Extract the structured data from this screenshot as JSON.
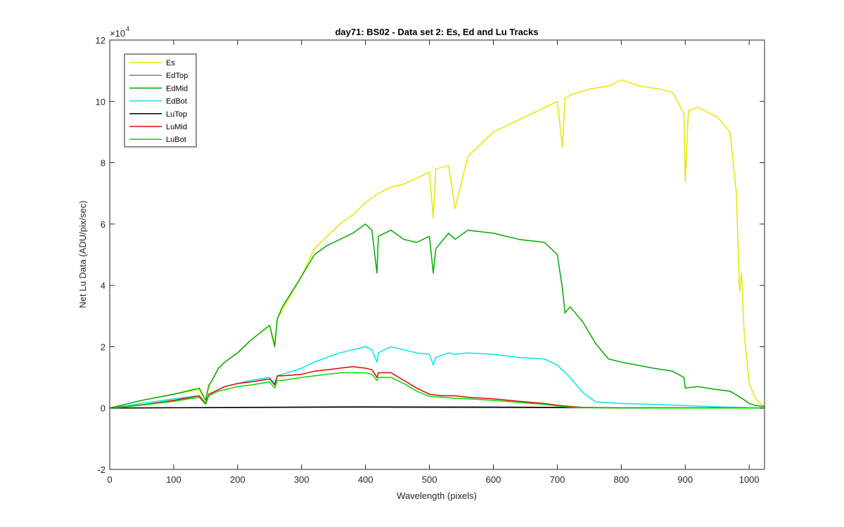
{
  "chart_data": {
    "type": "line",
    "title": "day71: BS02 - Data set 2: Es, Ed and Lu Tracks",
    "xlabel": "Wavelength (pixels)",
    "ylabel": "Net Lu Data (ADU/pix/sec)",
    "xlim": [
      0,
      1024
    ],
    "ylim": [
      -20000,
      120000
    ],
    "y_exponent_label": "×10",
    "y_exponent_power": "4",
    "x_ticks": [
      0,
      100,
      200,
      300,
      400,
      500,
      600,
      700,
      800,
      900,
      1000
    ],
    "x_tick_labels": [
      "0",
      "100",
      "200",
      "300",
      "400",
      "500",
      "600",
      "700",
      "800",
      "900",
      "1000"
    ],
    "y_ticks": [
      -20000,
      0,
      20000,
      40000,
      60000,
      80000,
      100000,
      120000
    ],
    "y_tick_labels": [
      "-2",
      "0",
      "2",
      "4",
      "6",
      "8",
      "10",
      "12"
    ],
    "grid": false,
    "legend_position": "top-left",
    "series": [
      {
        "name": "Es",
        "color": "#e6e600",
        "x": [
          0,
          20,
          50,
          100,
          140,
          150,
          155,
          160,
          170,
          180,
          200,
          220,
          250,
          258,
          262,
          270,
          300,
          320,
          340,
          360,
          380,
          400,
          420,
          440,
          460,
          480,
          500,
          506,
          510,
          530,
          540,
          560,
          600,
          650,
          700,
          708,
          712,
          720,
          750,
          780,
          800,
          830,
          860,
          880,
          898,
          900,
          905,
          920,
          950,
          970,
          980,
          985,
          988,
          992,
          1000,
          1010,
          1020,
          1024
        ],
        "y": [
          0,
          1000,
          2500,
          4500,
          6000,
          2500,
          7000,
          9000,
          13000,
          15000,
          18000,
          22000,
          27000,
          21000,
          29000,
          32000,
          43000,
          52000,
          56000,
          60000,
          63000,
          67000,
          70000,
          72000,
          73000,
          75000,
          77000,
          62000,
          78000,
          79000,
          65000,
          82000,
          90000,
          95000,
          100000,
          85000,
          101000,
          102000,
          104000,
          105000,
          107000,
          105000,
          104000,
          103000,
          96000,
          74000,
          97000,
          98000,
          95000,
          90000,
          70000,
          38000,
          44000,
          25000,
          8000,
          3000,
          1000,
          500
        ]
      },
      {
        "name": "EdTop",
        "color": "#808080",
        "x": [
          0,
          100,
          200,
          300,
          400,
          500,
          600,
          700,
          800,
          900,
          1000,
          1024
        ],
        "y": [
          0,
          100,
          150,
          200,
          200,
          180,
          150,
          100,
          60,
          40,
          20,
          0
        ]
      },
      {
        "name": "EdMid",
        "color": "#00aa00",
        "x": [
          0,
          20,
          50,
          100,
          140,
          150,
          155,
          160,
          170,
          180,
          200,
          220,
          250,
          258,
          262,
          270,
          300,
          320,
          340,
          360,
          380,
          400,
          410,
          418,
          420,
          440,
          460,
          480,
          500,
          506,
          510,
          530,
          540,
          560,
          600,
          640,
          680,
          700,
          708,
          712,
          720,
          740,
          760,
          780,
          800,
          850,
          880,
          898,
          900,
          920,
          950,
          970,
          990,
          1000,
          1010,
          1024
        ],
        "y": [
          0,
          1000,
          2500,
          4500,
          6500,
          2500,
          7500,
          9000,
          13000,
          15000,
          18000,
          22000,
          27000,
          20000,
          29000,
          33000,
          43000,
          50000,
          53000,
          55000,
          57000,
          60000,
          58000,
          44000,
          56000,
          58000,
          55000,
          54000,
          56000,
          44000,
          52000,
          57000,
          55000,
          58000,
          57000,
          55000,
          54000,
          50000,
          39000,
          31000,
          33000,
          28000,
          21000,
          16000,
          15000,
          13000,
          12000,
          10000,
          6500,
          7000,
          6000,
          5500,
          3000,
          1500,
          800,
          500
        ]
      },
      {
        "name": "EdBot",
        "color": "#00e6e6",
        "x": [
          0,
          20,
          50,
          100,
          140,
          150,
          155,
          160,
          170,
          180,
          200,
          220,
          250,
          258,
          262,
          270,
          300,
          320,
          340,
          360,
          380,
          400,
          410,
          418,
          420,
          440,
          460,
          480,
          500,
          506,
          510,
          530,
          540,
          560,
          600,
          640,
          680,
          700,
          720,
          740,
          760,
          800,
          850,
          900,
          950,
          1000,
          1024
        ],
        "y": [
          0,
          500,
          1500,
          3000,
          4000,
          1500,
          4500,
          5000,
          6000,
          7000,
          8000,
          9000,
          10000,
          8000,
          10500,
          11000,
          13000,
          15000,
          16500,
          18000,
          19000,
          20000,
          19000,
          15000,
          18000,
          20000,
          19000,
          18000,
          17500,
          14000,
          16500,
          18000,
          17500,
          18000,
          17500,
          16500,
          16000,
          14000,
          10000,
          5000,
          2000,
          1500,
          1200,
          800,
          400,
          100,
          0
        ]
      },
      {
        "name": "LuTop",
        "color": "#000000",
        "x": [
          0,
          100,
          200,
          300,
          400,
          500,
          600,
          700,
          800,
          900,
          1000,
          1024
        ],
        "y": [
          0,
          100,
          200,
          300,
          400,
          350,
          300,
          200,
          100,
          50,
          20,
          0
        ]
      },
      {
        "name": "LuMid",
        "color": "#e60000",
        "x": [
          0,
          20,
          50,
          100,
          140,
          150,
          155,
          160,
          170,
          180,
          200,
          220,
          250,
          258,
          262,
          270,
          300,
          320,
          340,
          360,
          380,
          400,
          410,
          418,
          420,
          440,
          460,
          480,
          500,
          520,
          540,
          560,
          600,
          640,
          680,
          700,
          720,
          740,
          760,
          800,
          850,
          900,
          950,
          1000,
          1024
        ],
        "y": [
          0,
          400,
          1000,
          2500,
          4000,
          1500,
          4500,
          5000,
          6000,
          7000,
          8000,
          8500,
          9500,
          7500,
          10500,
          10500,
          11000,
          12000,
          12500,
          13000,
          13500,
          13000,
          12500,
          10000,
          11500,
          11500,
          9000,
          6500,
          4500,
          4000,
          4000,
          3500,
          3000,
          2200,
          1500,
          900,
          500,
          200,
          100,
          50,
          20,
          0,
          0,
          0,
          0
        ]
      },
      {
        "name": "LuBot",
        "color": "#00dd00",
        "x": [
          0,
          20,
          50,
          100,
          140,
          150,
          155,
          160,
          170,
          180,
          200,
          220,
          250,
          258,
          262,
          270,
          300,
          320,
          340,
          360,
          380,
          400,
          410,
          418,
          420,
          440,
          460,
          480,
          500,
          520,
          540,
          560,
          600,
          640,
          680,
          700,
          720,
          740,
          760,
          800,
          850,
          900,
          950,
          1000,
          1024
        ],
        "y": [
          0,
          300,
          900,
          2200,
          3500,
          1200,
          4000,
          4500,
          5500,
          6000,
          7000,
          7500,
          8500,
          6500,
          9000,
          9000,
          10000,
          10500,
          11000,
          11500,
          11500,
          11500,
          11000,
          9000,
          10000,
          10000,
          8000,
          5500,
          3800,
          3500,
          3200,
          3000,
          2500,
          1800,
          1200,
          700,
          300,
          150,
          80,
          40,
          10,
          0,
          0,
          0,
          0
        ]
      }
    ]
  }
}
